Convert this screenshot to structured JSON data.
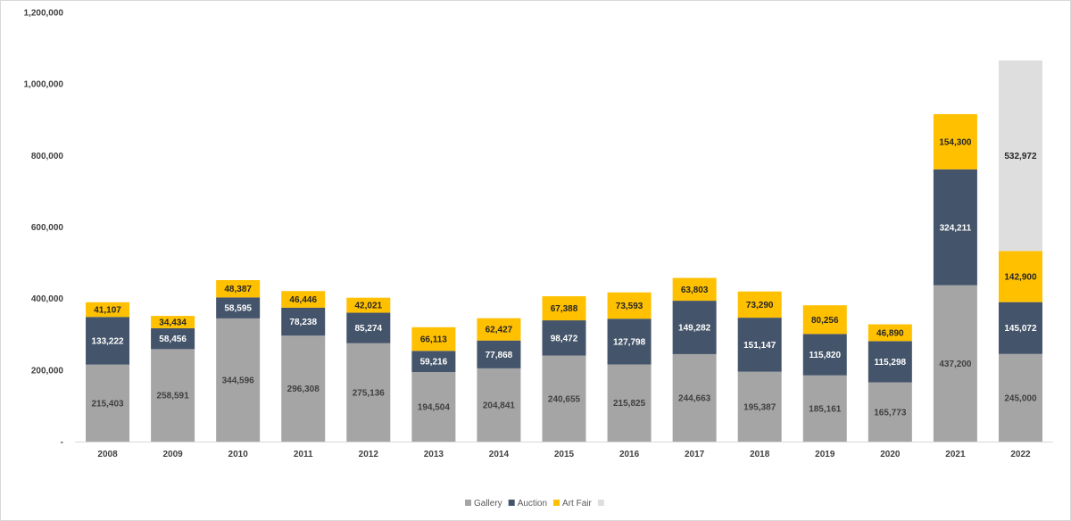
{
  "chart_data": {
    "type": "bar",
    "stacked": true,
    "title": "",
    "xlabel": "",
    "ylabel": "",
    "ylim": [
      0,
      1200000
    ],
    "yticks": [
      0,
      200000,
      400000,
      600000,
      800000,
      1000000,
      1200000
    ],
    "ytick_labels": [
      "-",
      "200,000",
      "400,000",
      "600,000",
      "800,000",
      "1,000,000",
      "1,200,000"
    ],
    "grid": false,
    "legend_position": "bottom",
    "categories": [
      "2008",
      "2009",
      "2010",
      "2011",
      "2012",
      "2013",
      "2014",
      "2015",
      "2016",
      "2017",
      "2018",
      "2019",
      "2020",
      "2021",
      "2022"
    ],
    "series": [
      {
        "name": "Gallery",
        "color": "#a5a5a5",
        "label_color": "#404040",
        "values": [
          215403,
          258591,
          344596,
          296308,
          275136,
          194504,
          204841,
          240655,
          215825,
          244663,
          195387,
          185161,
          165773,
          437200,
          245000
        ]
      },
      {
        "name": "Auction",
        "color": "#44546a",
        "label_color": "#ffffff",
        "values": [
          133222,
          58456,
          58595,
          78238,
          85274,
          59216,
          77868,
          98472,
          127798,
          149282,
          151147,
          115820,
          115298,
          324211,
          145072
        ]
      },
      {
        "name": "Art Fair",
        "color": "#ffc000",
        "label_color": "#262626",
        "values": [
          41107,
          34434,
          48387,
          46446,
          42021,
          66113,
          62427,
          67388,
          73593,
          63803,
          73290,
          80256,
          46890,
          154300,
          142900
        ]
      },
      {
        "name": "",
        "color": "#dedede",
        "label_color": "#262626",
        "values": [
          null,
          null,
          null,
          null,
          null,
          null,
          null,
          null,
          null,
          null,
          null,
          null,
          null,
          null,
          532972
        ]
      }
    ]
  }
}
